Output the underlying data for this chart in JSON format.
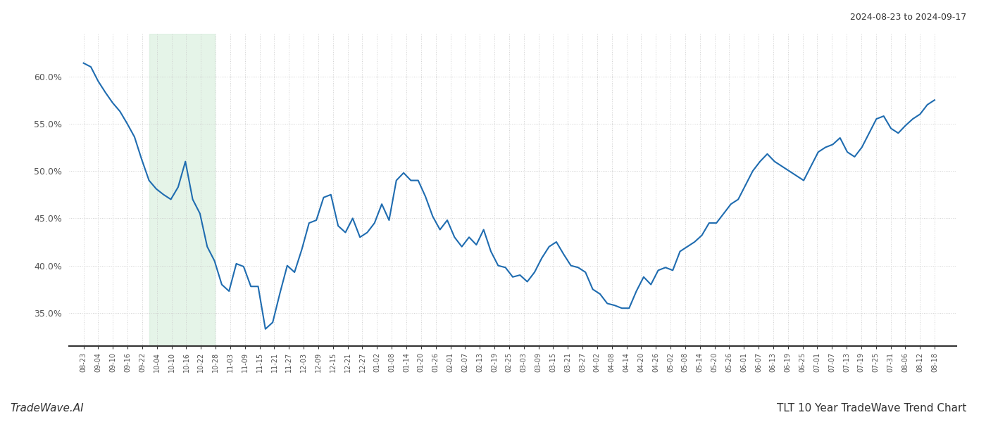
{
  "title_right": "2024-08-23 to 2024-09-17",
  "footer_left": "TradeWave.AI",
  "footer_right": "TLT 10 Year TradeWave Trend Chart",
  "line_color": "#1f6cb0",
  "line_width": 1.5,
  "shade_color": "#d4edda",
  "shade_alpha": 0.6,
  "background_color": "#ffffff",
  "grid_color": "#cccccc",
  "ylim": [
    0.315,
    0.645
  ],
  "yticks": [
    0.35,
    0.4,
    0.45,
    0.5,
    0.55,
    0.6
  ],
  "shade_xstart": 9,
  "shade_xend": 18,
  "x_labels": [
    "08-23",
    "09-04",
    "09-10",
    "09-16",
    "09-22",
    "10-04",
    "10-10",
    "10-16",
    "10-22",
    "10-28",
    "11-03",
    "11-09",
    "11-15",
    "11-21",
    "11-27",
    "12-03",
    "12-09",
    "12-15",
    "12-21",
    "12-27",
    "01-02",
    "01-08",
    "01-14",
    "01-20",
    "01-26",
    "02-01",
    "02-07",
    "02-13",
    "02-19",
    "02-25",
    "03-03",
    "03-09",
    "03-15",
    "03-21",
    "03-27",
    "04-02",
    "04-08",
    "04-14",
    "04-20",
    "04-26",
    "05-02",
    "05-08",
    "05-14",
    "05-20",
    "05-26",
    "06-01",
    "06-07",
    "06-13",
    "06-19",
    "06-25",
    "07-01",
    "07-07",
    "07-13",
    "07-19",
    "07-25",
    "07-31",
    "08-06",
    "08-12",
    "08-18"
  ],
  "y_values": [
    0.614,
    0.61,
    0.595,
    0.583,
    0.572,
    0.563,
    0.55,
    0.536,
    0.512,
    0.49,
    0.481,
    0.475,
    0.47,
    0.483,
    0.51,
    0.47,
    0.455,
    0.42,
    0.405,
    0.38,
    0.373,
    0.402,
    0.399,
    0.378,
    0.378,
    0.333,
    0.34,
    0.371,
    0.4,
    0.393,
    0.417,
    0.445,
    0.448,
    0.472,
    0.475,
    0.442,
    0.435,
    0.45,
    0.43,
    0.435,
    0.445,
    0.465,
    0.448,
    0.49,
    0.498,
    0.49,
    0.49,
    0.473,
    0.452,
    0.438,
    0.448,
    0.43,
    0.42,
    0.43,
    0.422,
    0.438,
    0.415,
    0.4,
    0.398,
    0.388,
    0.39,
    0.383,
    0.393,
    0.408,
    0.42,
    0.425,
    0.412,
    0.4,
    0.398,
    0.393,
    0.375,
    0.37,
    0.36,
    0.358,
    0.355,
    0.355,
    0.373,
    0.388,
    0.38,
    0.395,
    0.398,
    0.395,
    0.415,
    0.42,
    0.425,
    0.432,
    0.445,
    0.445,
    0.455,
    0.465,
    0.47,
    0.485,
    0.5,
    0.51,
    0.518,
    0.51,
    0.505,
    0.5,
    0.495,
    0.49,
    0.505,
    0.52,
    0.525,
    0.528,
    0.535,
    0.52,
    0.515,
    0.525,
    0.54,
    0.555,
    0.558,
    0.545,
    0.54,
    0.548,
    0.555,
    0.56,
    0.57,
    0.575
  ]
}
